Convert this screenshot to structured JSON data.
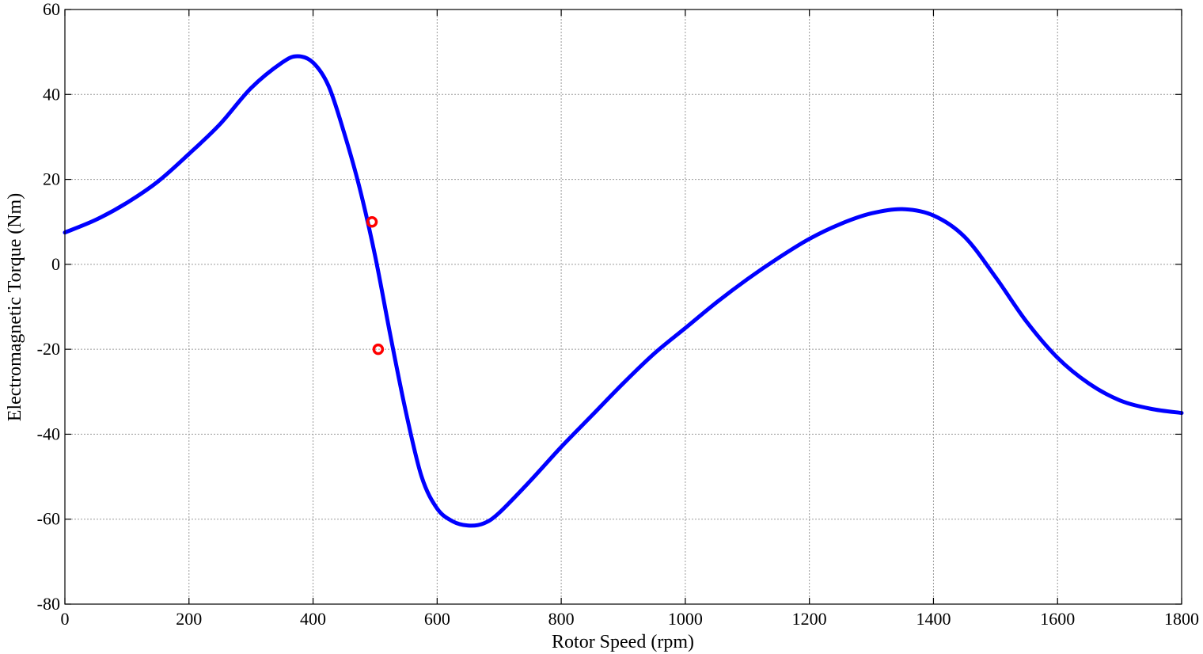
{
  "chart_data": {
    "type": "scatter",
    "title": "",
    "xlabel": "Rotor Speed (rpm)",
    "ylabel": "Electromagnetic Torque (Nm)",
    "xlim": [
      0,
      1800
    ],
    "ylim": [
      -80,
      60
    ],
    "xticks": [
      0,
      200,
      400,
      600,
      800,
      1000,
      1200,
      1400,
      1600,
      1800
    ],
    "yticks": [
      -80,
      -60,
      -40,
      -20,
      0,
      20,
      40,
      60
    ],
    "grid": true,
    "series": [
      {
        "color": "#0000ff",
        "style": "line",
        "points": [
          [
            0,
            7.5
          ],
          [
            50,
            10.5
          ],
          [
            100,
            14.5
          ],
          [
            150,
            19.5
          ],
          [
            200,
            26
          ],
          [
            250,
            33
          ],
          [
            300,
            41.5
          ],
          [
            350,
            47.5
          ],
          [
            375,
            49
          ],
          [
            400,
            47.5
          ],
          [
            425,
            42
          ],
          [
            450,
            31
          ],
          [
            475,
            18
          ],
          [
            500,
            2
          ],
          [
            525,
            -17
          ],
          [
            550,
            -35
          ],
          [
            575,
            -50
          ],
          [
            600,
            -57.5
          ],
          [
            625,
            -60.5
          ],
          [
            650,
            -61.5
          ],
          [
            675,
            -61
          ],
          [
            700,
            -58.5
          ],
          [
            750,
            -51
          ],
          [
            800,
            -43
          ],
          [
            850,
            -35.5
          ],
          [
            900,
            -28
          ],
          [
            950,
            -21
          ],
          [
            1000,
            -15
          ],
          [
            1050,
            -9
          ],
          [
            1100,
            -3.5
          ],
          [
            1150,
            1.5
          ],
          [
            1200,
            6
          ],
          [
            1250,
            9.5
          ],
          [
            1300,
            12
          ],
          [
            1350,
            13
          ],
          [
            1400,
            11.5
          ],
          [
            1450,
            6.5
          ],
          [
            1500,
            -3
          ],
          [
            1550,
            -13.5
          ],
          [
            1600,
            -22
          ],
          [
            1650,
            -28
          ],
          [
            1700,
            -32
          ],
          [
            1750,
            -34
          ],
          [
            1800,
            -35
          ]
        ]
      },
      {
        "color": "#ff0000",
        "style": "markers",
        "marker": "circle-open",
        "points": [
          [
            495,
            10
          ],
          [
            505,
            -20
          ]
        ]
      }
    ]
  }
}
